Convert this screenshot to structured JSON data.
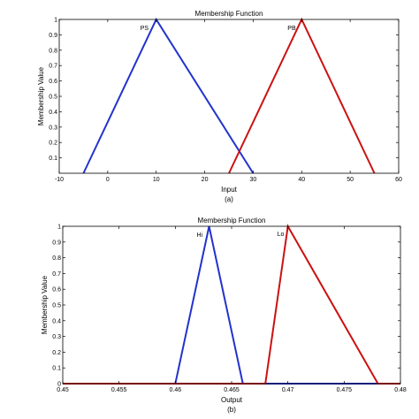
{
  "chart_data": [
    {
      "type": "line",
      "title": "Membership Function",
      "xlabel": "Input",
      "ylabel": "Membership Value",
      "caption": "(a)",
      "xlim": [
        -10,
        60
      ],
      "ylim": [
        0,
        1
      ],
      "xticks": [
        -10,
        0,
        10,
        20,
        30,
        40,
        50,
        60
      ],
      "xtick_labels": [
        "-10",
        "0",
        "10",
        "20",
        "30",
        "40",
        "50",
        "60"
      ],
      "yticks": [
        0.1,
        0.2,
        0.3,
        0.4,
        0.5,
        0.6,
        0.7,
        0.8,
        0.9,
        1
      ],
      "ytick_labels": [
        "0.1",
        "0.2",
        "0.3",
        "0.4",
        "0.5",
        "0.6",
        "0.7",
        "0.8",
        "0.9",
        "1"
      ],
      "grid": false,
      "series": [
        {
          "name": "PS",
          "color": "#2233cc",
          "x": [
            -5,
            10,
            30
          ],
          "y": [
            0,
            1,
            0
          ]
        },
        {
          "name": "PB",
          "color": "#cc1111",
          "x": [
            25,
            40,
            55
          ],
          "y": [
            0,
            1,
            0
          ]
        }
      ]
    },
    {
      "type": "line",
      "title": "Membership Function",
      "xlabel": "Output",
      "ylabel": "Membership Value",
      "caption": "(b)",
      "xlim": [
        0.45,
        0.48
      ],
      "ylim": [
        0,
        1
      ],
      "xticks": [
        0.45,
        0.455,
        0.46,
        0.465,
        0.47,
        0.475,
        0.48
      ],
      "xtick_labels": [
        "0.45",
        "0.455",
        "0.46",
        "0.465",
        "0.47",
        "0.475",
        "0.48"
      ],
      "yticks": [
        0,
        0.1,
        0.2,
        0.3,
        0.4,
        0.5,
        0.6,
        0.7,
        0.8,
        0.9,
        1
      ],
      "ytick_labels": [
        "0",
        "0.1",
        "0.2",
        "0.3",
        "0.4",
        "0.5",
        "0.6",
        "0.7",
        "0.8",
        "0.9",
        "1"
      ],
      "grid": false,
      "series": [
        {
          "name": "Hi",
          "color": "#2233cc",
          "x": [
            0.45,
            0.46,
            0.463,
            0.466,
            0.48
          ],
          "y": [
            0,
            0,
            1,
            0,
            0
          ]
        },
        {
          "name": "Lo",
          "color": "#cc1111",
          "x": [
            0.45,
            0.468,
            0.47,
            0.478,
            0.48
          ],
          "y": [
            0,
            0,
            1,
            0,
            0
          ]
        }
      ]
    }
  ]
}
